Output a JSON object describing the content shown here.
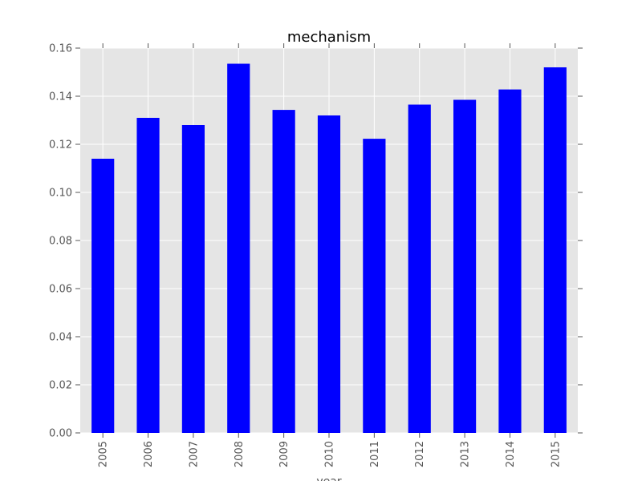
{
  "chart_data": {
    "type": "bar",
    "title": "mechanism",
    "xlabel": "year",
    "ylabel": "",
    "categories": [
      "2005",
      "2006",
      "2007",
      "2008",
      "2009",
      "2010",
      "2011",
      "2012",
      "2013",
      "2014",
      "2015"
    ],
    "values": [
      0.114,
      0.131,
      0.128,
      0.1535,
      0.1343,
      0.132,
      0.1223,
      0.1365,
      0.1385,
      0.1428,
      0.152
    ],
    "ylim": [
      0,
      0.16
    ],
    "yticks": [
      "0.00",
      "0.02",
      "0.04",
      "0.06",
      "0.08",
      "0.10",
      "0.12",
      "0.14",
      "0.16"
    ],
    "grid": true,
    "legend": "none",
    "bar_color": "#0000ff",
    "plot_background": "#e5e5e5",
    "grid_color": "#ffffff"
  }
}
